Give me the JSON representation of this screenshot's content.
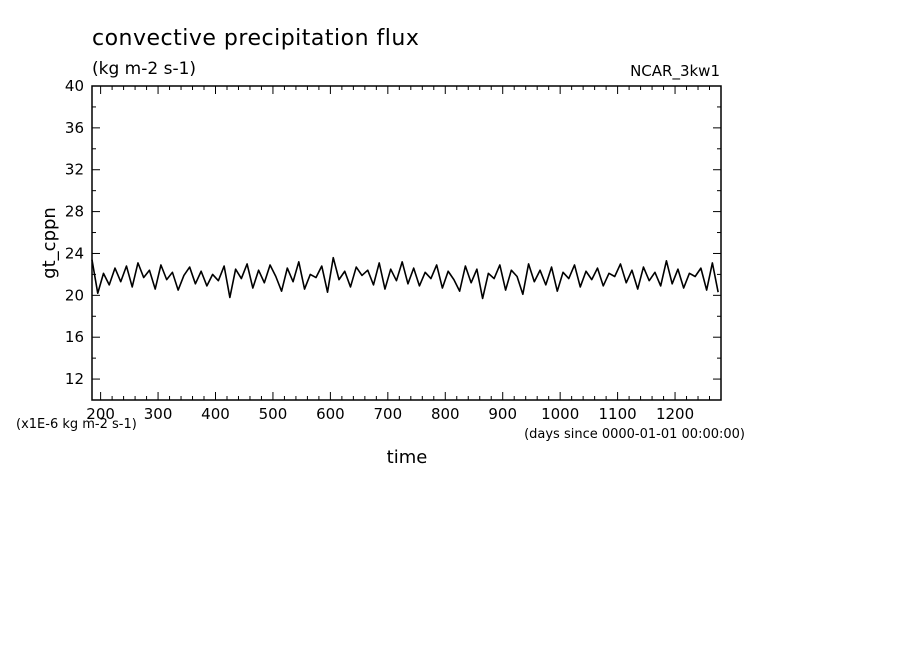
{
  "chart_data": {
    "type": "line",
    "title": "convective precipitation flux",
    "units": "(kg m-2 s-1)",
    "model": "NCAR_3kw1",
    "xlabel": "time",
    "x_units": "(days since 0000-01-01 00:00:00)",
    "ylabel": "gt_cppn",
    "y_scale_note": "(x1E-6 kg m-2 s-1)",
    "xlim": [
      185,
      1280
    ],
    "ylim": [
      10,
      40
    ],
    "x_ticks": [
      200,
      300,
      400,
      500,
      600,
      700,
      800,
      900,
      1000,
      1100,
      1200
    ],
    "y_ticks": [
      12,
      16,
      20,
      24,
      28,
      32,
      36,
      40
    ],
    "grid": false,
    "legend": "none",
    "line_color": "#000000",
    "series": [
      {
        "x": [
          185,
          195,
          205,
          215,
          225,
          235,
          245,
          255,
          265,
          275,
          285,
          295,
          305,
          315,
          325,
          335,
          345,
          355,
          365,
          375,
          385,
          395,
          405,
          415,
          425,
          435,
          445,
          455,
          465,
          475,
          485,
          495,
          505,
          515,
          525,
          535,
          545,
          555,
          565,
          575,
          585,
          595,
          605,
          615,
          625,
          635,
          645,
          655,
          665,
          675,
          685,
          695,
          705,
          715,
          725,
          735,
          745,
          755,
          765,
          775,
          785,
          795,
          805,
          815,
          825,
          835,
          845,
          855,
          865,
          875,
          885,
          895,
          905,
          915,
          925,
          935,
          945,
          955,
          965,
          975,
          985,
          995,
          1005,
          1015,
          1025,
          1035,
          1045,
          1055,
          1065,
          1075,
          1085,
          1095,
          1105,
          1115,
          1125,
          1135,
          1145,
          1155,
          1165,
          1175,
          1185,
          1195,
          1205,
          1215,
          1225,
          1235,
          1245,
          1255,
          1265,
          1275
        ],
        "y": [
          23.4,
          20.2,
          22.1,
          21.0,
          22.6,
          21.3,
          22.8,
          20.8,
          23.1,
          21.7,
          22.4,
          20.6,
          22.9,
          21.5,
          22.2,
          20.5,
          21.9,
          22.7,
          21.1,
          22.3,
          20.9,
          22.0,
          21.4,
          22.8,
          19.8,
          22.5,
          21.6,
          23.0,
          20.7,
          22.4,
          21.2,
          22.9,
          21.8,
          20.4,
          22.6,
          21.3,
          23.2,
          20.6,
          22.0,
          21.7,
          22.8,
          20.3,
          23.6,
          21.5,
          22.3,
          20.8,
          22.7,
          21.9,
          22.4,
          21.0,
          23.1,
          20.6,
          22.5,
          21.4,
          23.2,
          21.1,
          22.6,
          20.9,
          22.2,
          21.6,
          22.9,
          20.7,
          22.3,
          21.5,
          20.4,
          22.8,
          21.2,
          22.5,
          19.7,
          22.1,
          21.6,
          22.9,
          20.5,
          22.4,
          21.8,
          20.1,
          23.0,
          21.3,
          22.4,
          21.0,
          22.7,
          20.4,
          22.2,
          21.6,
          22.9,
          20.8,
          22.3,
          21.5,
          22.6,
          20.9,
          22.1,
          21.8,
          23.0,
          21.2,
          22.4,
          20.6,
          22.7,
          21.4,
          22.2,
          20.9,
          23.3,
          21.1,
          22.5,
          20.7,
          22.1,
          21.8,
          22.6,
          20.5,
          23.1,
          20.3
        ]
      }
    ]
  }
}
